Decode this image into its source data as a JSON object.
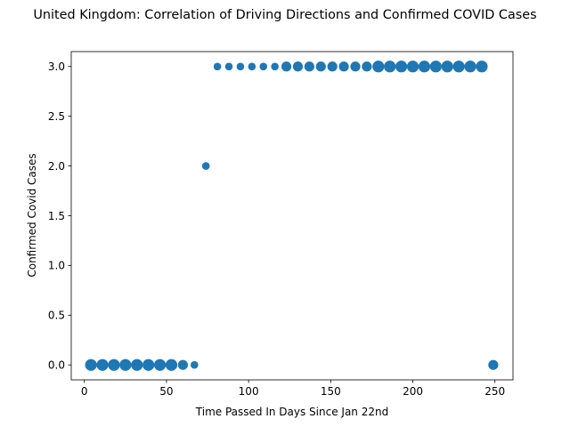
{
  "chart_data": {
    "type": "scatter",
    "title": "United Kingdom: Correlation of Driving Directions and Confirmed COVID Cases",
    "xlabel": "Time Passed In Days Since Jan 22nd",
    "ylabel": "Confirmed Covid Cases",
    "xlim": [
      -8,
      261
    ],
    "ylim": [
      -0.15,
      3.15
    ],
    "xticks": [
      0,
      50,
      100,
      150,
      200,
      250
    ],
    "yticks": [
      0.0,
      0.5,
      1.0,
      1.5,
      2.0,
      2.5,
      3.0
    ],
    "xtick_labels": [
      "0",
      "50",
      "100",
      "150",
      "200",
      "250"
    ],
    "ytick_labels": [
      "0.0",
      "0.5",
      "1.0",
      "1.5",
      "2.0",
      "2.5",
      "3.0"
    ],
    "grid": false,
    "marker_color": "#1f77b4",
    "size_note_values": "relative marker size",
    "points": [
      {
        "x": 4,
        "y": 0,
        "s": 3
      },
      {
        "x": 11,
        "y": 0,
        "s": 3
      },
      {
        "x": 18,
        "y": 0,
        "s": 3
      },
      {
        "x": 25,
        "y": 0,
        "s": 3
      },
      {
        "x": 32,
        "y": 0,
        "s": 3
      },
      {
        "x": 39,
        "y": 0,
        "s": 3
      },
      {
        "x": 46,
        "y": 0,
        "s": 3
      },
      {
        "x": 53,
        "y": 0,
        "s": 3
      },
      {
        "x": 60,
        "y": 0,
        "s": 2
      },
      {
        "x": 67,
        "y": 0,
        "s": 1
      },
      {
        "x": 74,
        "y": 2,
        "s": 1
      },
      {
        "x": 81,
        "y": 3,
        "s": 1
      },
      {
        "x": 88,
        "y": 3,
        "s": 1
      },
      {
        "x": 95,
        "y": 3,
        "s": 1
      },
      {
        "x": 102,
        "y": 3,
        "s": 1
      },
      {
        "x": 109,
        "y": 3,
        "s": 1
      },
      {
        "x": 116,
        "y": 3,
        "s": 1
      },
      {
        "x": 123,
        "y": 3,
        "s": 2
      },
      {
        "x": 130,
        "y": 3,
        "s": 2
      },
      {
        "x": 137,
        "y": 3,
        "s": 2
      },
      {
        "x": 144,
        "y": 3,
        "s": 2
      },
      {
        "x": 151,
        "y": 3,
        "s": 2
      },
      {
        "x": 158,
        "y": 3,
        "s": 2
      },
      {
        "x": 165,
        "y": 3,
        "s": 2
      },
      {
        "x": 172,
        "y": 3,
        "s": 2
      },
      {
        "x": 179,
        "y": 3,
        "s": 3
      },
      {
        "x": 186,
        "y": 3,
        "s": 3
      },
      {
        "x": 193,
        "y": 3,
        "s": 3
      },
      {
        "x": 200,
        "y": 3,
        "s": 3
      },
      {
        "x": 207,
        "y": 3,
        "s": 3
      },
      {
        "x": 214,
        "y": 3,
        "s": 3
      },
      {
        "x": 221,
        "y": 3,
        "s": 3
      },
      {
        "x": 228,
        "y": 3,
        "s": 3
      },
      {
        "x": 235,
        "y": 3,
        "s": 3
      },
      {
        "x": 242,
        "y": 3,
        "s": 3
      },
      {
        "x": 249,
        "y": 0,
        "s": 2
      }
    ]
  }
}
